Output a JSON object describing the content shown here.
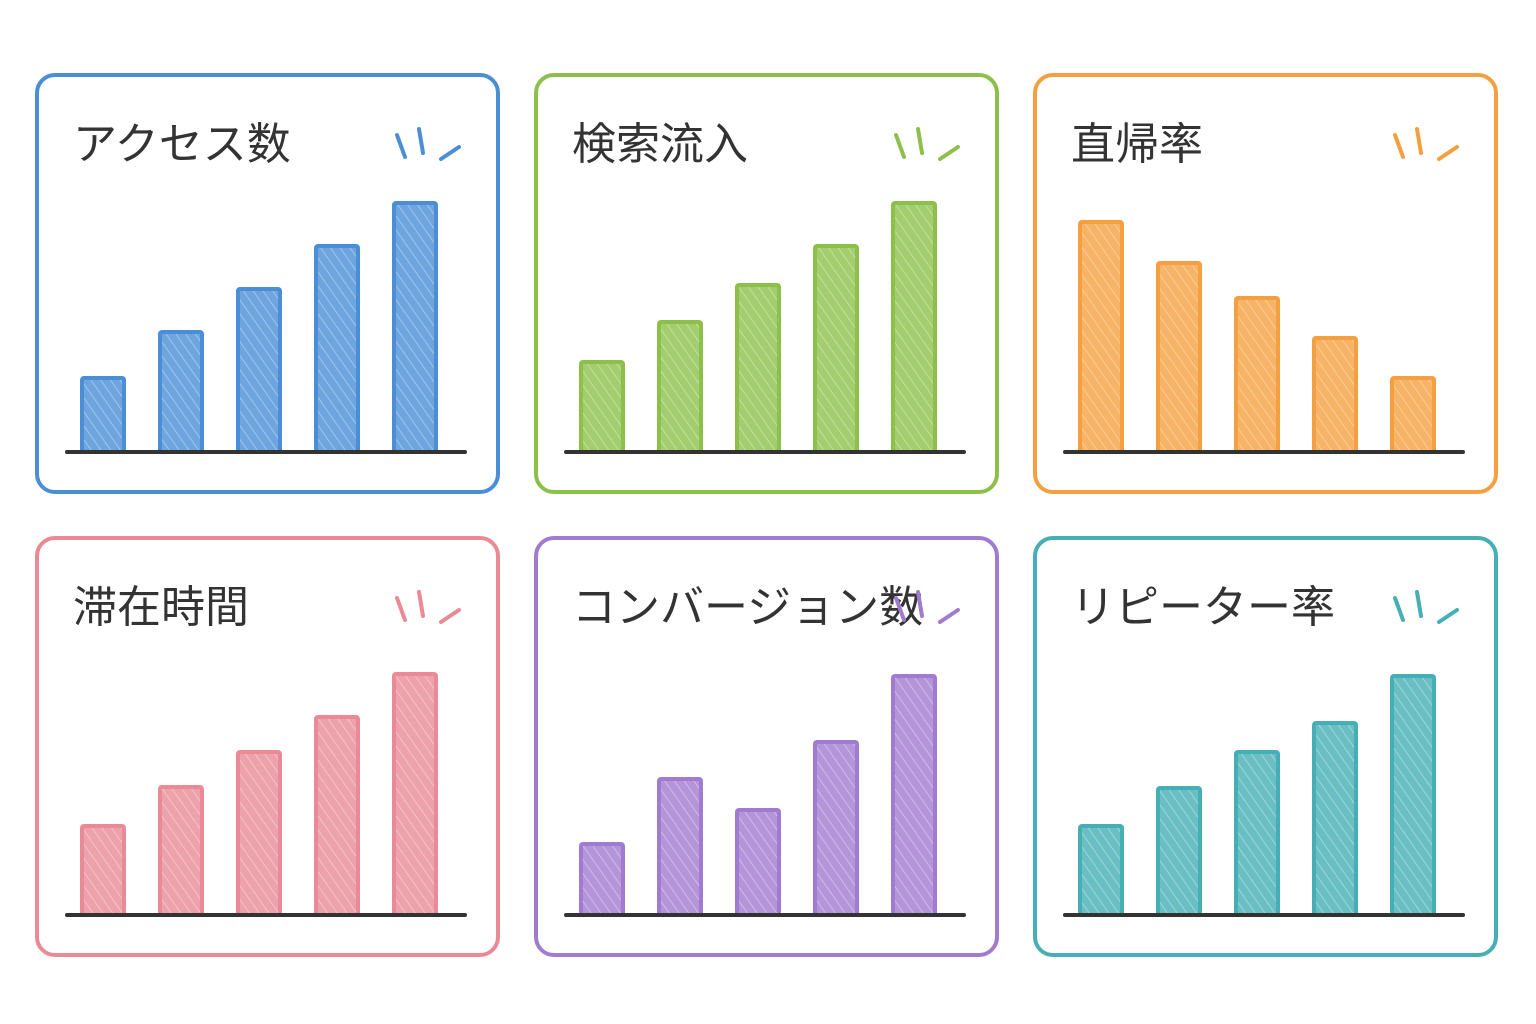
{
  "chart_data": [
    {
      "type": "bar",
      "title": "アクセス数",
      "values": [
        74,
        120,
        163,
        206,
        249
      ],
      "color": "#4a8fd6",
      "ylim": [
        0,
        260
      ]
    },
    {
      "type": "bar",
      "title": "検索流入",
      "values": [
        90,
        130,
        167,
        206,
        249
      ],
      "color": "#8cc04a",
      "ylim": [
        0,
        260
      ]
    },
    {
      "type": "bar",
      "title": "直帰率",
      "values": [
        230,
        189,
        154,
        114,
        74
      ],
      "color": "#f5a040",
      "ylim": [
        0,
        260
      ]
    },
    {
      "type": "bar",
      "title": "滞在時間",
      "values": [
        89,
        128,
        163,
        198,
        241
      ],
      "color": "#e98a96",
      "ylim": [
        0,
        260
      ]
    },
    {
      "type": "bar",
      "title": "コンバージョン数",
      "values": [
        71,
        136,
        105,
        173,
        239
      ],
      "color": "#a17bd0",
      "ylim": [
        0,
        260
      ]
    },
    {
      "type": "bar",
      "title": "リピーター率",
      "values": [
        89,
        127,
        163,
        192,
        239
      ],
      "color": "#45afb5",
      "ylim": [
        0,
        260
      ]
    }
  ]
}
